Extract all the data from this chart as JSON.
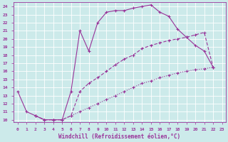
{
  "xlabel": "Windchill (Refroidissement éolien,°C)",
  "bg_color": "#cceaea",
  "line_color": "#993399",
  "xlim": [
    -0.5,
    23.4
  ],
  "ylim": [
    9.7,
    24.5
  ],
  "xticks": [
    0,
    1,
    2,
    3,
    4,
    5,
    6,
    7,
    8,
    9,
    10,
    11,
    12,
    13,
    14,
    15,
    16,
    17,
    18,
    19,
    20,
    21,
    22,
    23
  ],
  "yticks": [
    10,
    11,
    12,
    13,
    14,
    15,
    16,
    17,
    18,
    19,
    20,
    21,
    22,
    23,
    24
  ],
  "curve1_x": [
    0,
    1,
    2,
    3,
    4,
    5,
    6,
    7,
    8,
    9,
    10,
    11,
    12,
    13,
    14,
    15,
    16,
    17,
    18,
    19,
    20,
    21,
    22
  ],
  "curve1_y": [
    13.5,
    11.0,
    10.5,
    10.0,
    10.0,
    10.0,
    13.5,
    21.0,
    18.5,
    22.0,
    23.3,
    23.5,
    23.5,
    23.8,
    24.0,
    24.2,
    23.3,
    22.8,
    21.2,
    20.2,
    19.2,
    18.5,
    16.5
  ],
  "curve2_x": [
    2,
    3,
    4,
    5,
    6,
    7,
    8,
    9,
    10,
    11,
    12,
    13,
    14,
    15,
    16,
    17,
    18,
    19,
    20,
    21,
    22
  ],
  "curve2_y": [
    10.5,
    10.0,
    10.0,
    10.0,
    10.5,
    11.0,
    11.5,
    12.0,
    12.5,
    13.0,
    13.5,
    14.0,
    14.5,
    14.8,
    15.2,
    15.5,
    15.8,
    16.0,
    16.2,
    16.3,
    16.5
  ],
  "curve3_x": [
    2,
    3,
    4,
    5,
    6,
    7,
    8,
    9,
    10,
    11,
    12,
    13,
    14,
    15,
    16,
    17,
    18,
    19,
    20,
    21,
    22
  ],
  "curve3_y": [
    10.5,
    10.0,
    10.0,
    10.0,
    10.5,
    13.5,
    14.5,
    15.2,
    16.0,
    16.8,
    17.5,
    18.0,
    18.8,
    19.2,
    19.5,
    19.8,
    20.0,
    20.2,
    20.5,
    20.8,
    16.5
  ]
}
